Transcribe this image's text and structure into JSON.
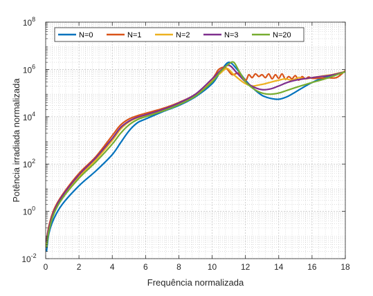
{
  "chart_data": {
    "type": "line",
    "xlabel": "Frequência normalizada",
    "ylabel": "Potência irradiada normalizada",
    "xlim": [
      0,
      18
    ],
    "ylim": [
      0.01,
      100000000
    ],
    "yscale": "log",
    "grid": true,
    "minor_grid": true,
    "legend_position": "top",
    "x_ticks": [
      0,
      2,
      4,
      6,
      8,
      10,
      12,
      14,
      16,
      18
    ],
    "x_tick_labels": [
      "0",
      "2",
      "4",
      "6",
      "8",
      "10",
      "12",
      "14",
      "16",
      "18"
    ],
    "y_ticks": [
      0.01,
      1,
      100,
      10000,
      1000000,
      100000000
    ],
    "y_tick_labels": [
      {
        "base": "10",
        "exp": "-2"
      },
      {
        "base": "10",
        "exp": "0"
      },
      {
        "base": "10",
        "exp": "2"
      },
      {
        "base": "10",
        "exp": "4"
      },
      {
        "base": "10",
        "exp": "6"
      },
      {
        "base": "10",
        "exp": "8"
      }
    ],
    "series": [
      {
        "name": "N=0",
        "color": "#0072BD",
        "x": [
          0.05,
          0.2,
          0.5,
          1,
          2,
          3,
          4,
          4.5,
          5,
          5.5,
          6,
          7,
          8,
          9,
          10,
          10.5,
          11,
          11.5,
          12,
          12.5,
          13,
          13.5,
          14,
          14.5,
          15,
          15.5,
          16,
          16.5,
          17,
          17.5,
          18
        ],
        "y": [
          0.02,
          0.12,
          0.5,
          2,
          12,
          50,
          250,
          800,
          2500,
          5500,
          8000,
          16000,
          30000,
          70000,
          250000,
          800000,
          2000000,
          1000000,
          350000,
          150000,
          80000,
          60000,
          55000,
          70000,
          110000,
          180000,
          280000,
          400000,
          520000,
          650000,
          800000
        ]
      },
      {
        "name": "N=1",
        "color": "#D95319",
        "x": [
          0.05,
          0.2,
          0.5,
          1,
          2,
          3,
          4,
          4.5,
          5,
          5.5,
          6,
          7,
          8,
          9,
          10,
          10.4,
          10.8,
          11.2,
          11.6,
          12,
          12.2,
          12.4,
          12.6,
          12.8,
          13,
          13.2,
          13.4,
          13.6,
          13.8,
          14,
          14.2,
          14.4,
          14.6,
          14.8,
          15,
          15.2,
          15.4,
          15.6,
          15.8,
          16,
          16.5,
          17,
          17.5,
          18
        ],
        "y": [
          0.06,
          0.25,
          1.2,
          5,
          40,
          200,
          1600,
          4500,
          8000,
          11000,
          14000,
          22000,
          40000,
          90000,
          400000,
          1000000,
          1200000,
          600000,
          700000,
          350000,
          600000,
          450000,
          650000,
          500000,
          600000,
          450000,
          650000,
          400000,
          600000,
          420000,
          650000,
          380000,
          500000,
          400000,
          550000,
          350000,
          500000,
          400000,
          480000,
          420000,
          430000,
          440000,
          460000,
          900000
        ]
      },
      {
        "name": "N=2",
        "color": "#EDB120",
        "x": [
          0.05,
          0.2,
          0.5,
          1,
          2,
          3,
          4,
          4.5,
          5,
          5.5,
          6,
          7,
          8,
          9,
          10,
          10.5,
          10.9,
          11.3,
          11.7,
          12,
          12.4,
          12.8,
          13.2,
          13.6,
          14,
          14.4,
          14.8,
          15.2,
          15.6,
          16,
          16.4,
          16.8,
          17.2,
          17.6,
          18
        ],
        "y": [
          0.04,
          0.18,
          0.9,
          4,
          30,
          150,
          1000,
          3000,
          6000,
          9000,
          11000,
          18000,
          35000,
          80000,
          350000,
          700000,
          1100000,
          600000,
          350000,
          250000,
          200000,
          220000,
          250000,
          300000,
          350000,
          400000,
          350000,
          450000,
          400000,
          450000,
          500000,
          550000,
          600000,
          700000,
          800000
        ]
      },
      {
        "name": "N=3",
        "color": "#7E2F8E",
        "x": [
          0.05,
          0.2,
          0.5,
          1,
          2,
          3,
          4,
          4.5,
          5,
          5.5,
          6,
          7,
          8,
          9,
          10,
          10.5,
          11,
          11.5,
          12,
          12.5,
          13,
          13.5,
          14,
          14.5,
          15,
          15.5,
          16,
          16.5,
          17,
          17.5,
          18
        ],
        "y": [
          0.05,
          0.2,
          1,
          4.5,
          35,
          180,
          1200,
          3500,
          6500,
          9500,
          12000,
          20000,
          38000,
          90000,
          400000,
          900000,
          1500000,
          700000,
          300000,
          180000,
          140000,
          150000,
          200000,
          280000,
          350000,
          400000,
          450000,
          500000,
          550000,
          650000,
          800000
        ]
      },
      {
        "name": "N=20",
        "color": "#77AC30",
        "x": [
          0.05,
          0.2,
          0.5,
          1,
          2,
          3,
          4,
          4.5,
          5,
          5.5,
          6,
          7,
          8,
          9,
          10,
          10.5,
          11,
          11.3,
          11.6,
          12,
          12.5,
          13,
          13.5,
          14,
          14.5,
          15,
          15.5,
          16,
          16.5,
          17,
          17.5,
          18
        ],
        "y": [
          0.03,
          0.15,
          0.8,
          3.5,
          25,
          120,
          700,
          2000,
          4500,
          7500,
          10000,
          17000,
          32000,
          75000,
          300000,
          800000,
          1700000,
          2000000,
          900000,
          300000,
          150000,
          100000,
          90000,
          100000,
          130000,
          170000,
          220000,
          280000,
          350000,
          450000,
          600000,
          800000
        ]
      }
    ]
  }
}
